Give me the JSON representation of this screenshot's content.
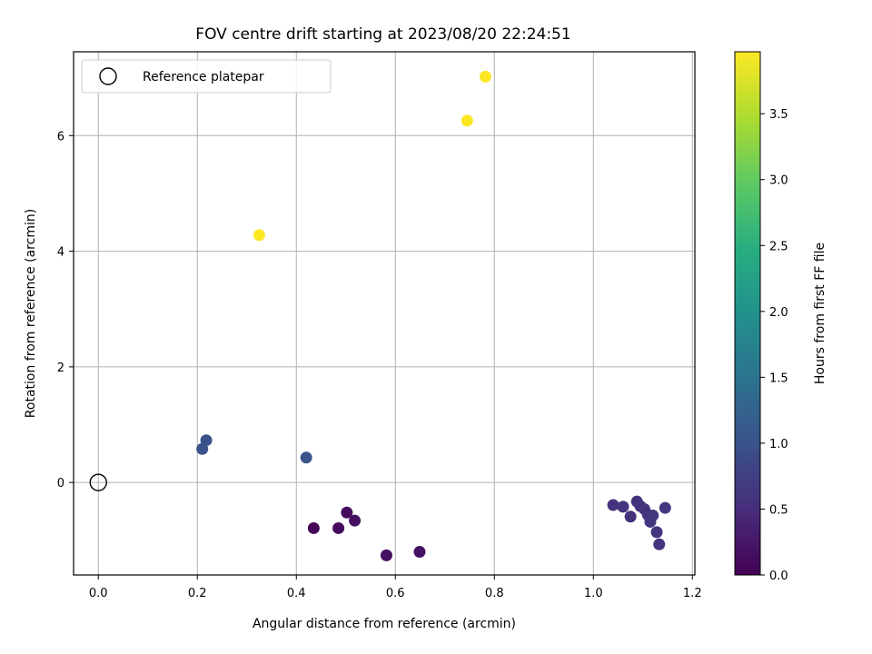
{
  "chart_data": {
    "type": "scatter",
    "title": "FOV centre drift starting at 2023/08/20 22:24:51",
    "xlabel": "Angular distance from reference (arcmin)",
    "ylabel": "Rotation from reference (arcmin)",
    "xlim": [
      -0.05,
      1.205
    ],
    "ylim": [
      -1.6,
      7.45
    ],
    "xticks": [
      0.0,
      0.2,
      0.4,
      0.6,
      0.8,
      1.0,
      1.2
    ],
    "xtick_labels": [
      "0.0",
      "0.2",
      "0.4",
      "0.6",
      "0.8",
      "1.0",
      "1.2"
    ],
    "yticks": [
      0,
      2,
      4,
      6
    ],
    "ytick_labels": [
      "0",
      "2",
      "4",
      "6"
    ],
    "grid": true,
    "legend": {
      "placement": "top-left",
      "entries": [
        {
          "label": "Reference platepar",
          "marker": "open-circle"
        }
      ]
    },
    "reference": {
      "x": 0.0,
      "y": 0.0
    },
    "colorbar": {
      "label": "Hours from first FF file",
      "colormap": "viridis",
      "range": [
        0.0,
        3.97
      ],
      "ticks": [
        0.0,
        0.5,
        1.0,
        1.5,
        2.0,
        2.5,
        3.0,
        3.5
      ],
      "tick_labels": [
        "0.0",
        "0.5",
        "1.0",
        "1.5",
        "2.0",
        "2.5",
        "3.0",
        "3.5"
      ]
    },
    "points": [
      {
        "x": 0.435,
        "y": -0.79,
        "c": 0.05
      },
      {
        "x": 0.485,
        "y": -0.79,
        "c": 0.1
      },
      {
        "x": 0.502,
        "y": -0.52,
        "c": 0.12
      },
      {
        "x": 0.518,
        "y": -0.66,
        "c": 0.15
      },
      {
        "x": 0.582,
        "y": -1.26,
        "c": 0.17
      },
      {
        "x": 0.649,
        "y": -1.2,
        "c": 0.2
      },
      {
        "x": 1.04,
        "y": -0.39,
        "c": 0.58
      },
      {
        "x": 1.06,
        "y": -0.42,
        "c": 0.56
      },
      {
        "x": 1.075,
        "y": -0.59,
        "c": 0.55
      },
      {
        "x": 1.088,
        "y": -0.33,
        "c": 0.57
      },
      {
        "x": 1.095,
        "y": -0.41,
        "c": 0.58
      },
      {
        "x": 1.103,
        "y": -0.46,
        "c": 0.6
      },
      {
        "x": 1.11,
        "y": -0.56,
        "c": 0.55
      },
      {
        "x": 1.115,
        "y": -0.68,
        "c": 0.62
      },
      {
        "x": 1.12,
        "y": -0.57,
        "c": 0.62
      },
      {
        "x": 1.128,
        "y": -0.86,
        "c": 0.6
      },
      {
        "x": 1.133,
        "y": -1.07,
        "c": 0.6
      },
      {
        "x": 1.145,
        "y": -0.44,
        "c": 0.65
      },
      {
        "x": 0.21,
        "y": 0.58,
        "c": 1.0
      },
      {
        "x": 0.218,
        "y": 0.73,
        "c": 1.0
      },
      {
        "x": 0.42,
        "y": 0.43,
        "c": 1.0
      },
      {
        "x": 0.325,
        "y": 4.28,
        "c": 3.97
      },
      {
        "x": 0.745,
        "y": 6.26,
        "c": 3.97
      },
      {
        "x": 0.782,
        "y": 7.02,
        "c": 3.97
      }
    ]
  }
}
